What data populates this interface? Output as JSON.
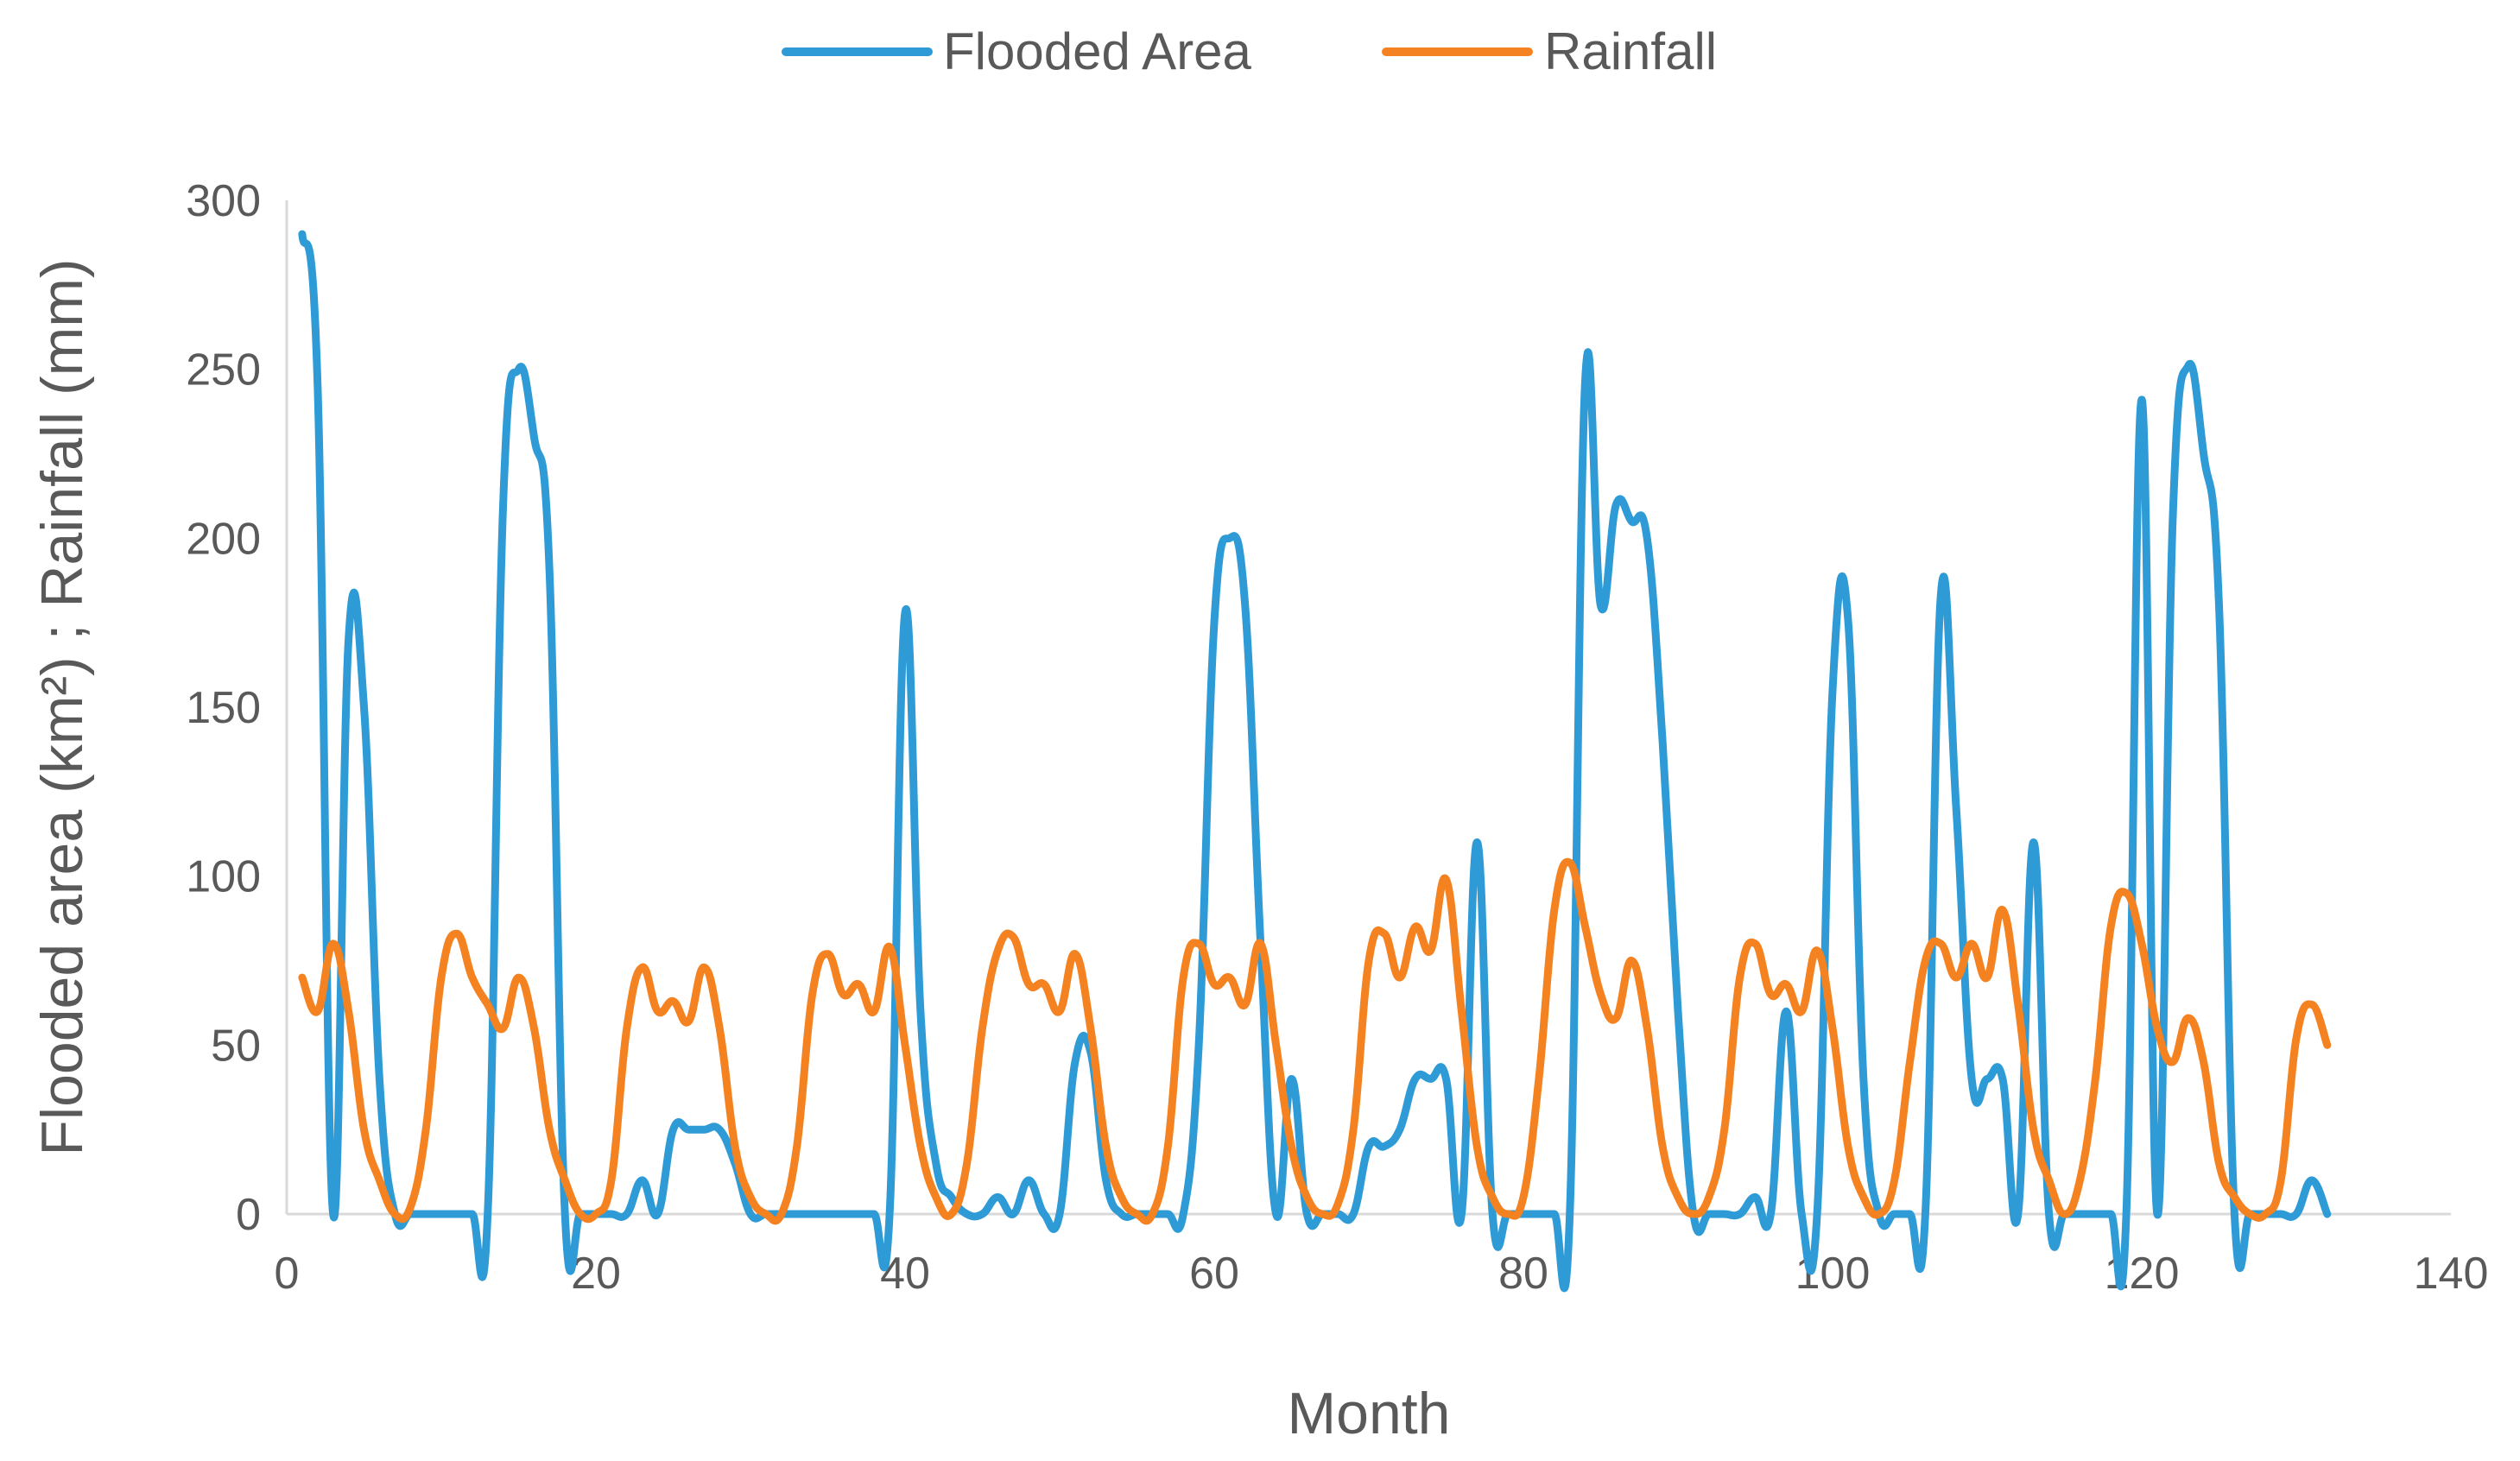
{
  "chart_data": {
    "type": "line",
    "title": "",
    "xlabel": "Month",
    "ylabel": "Flooded area (km²) ; Rainfall (mm)",
    "xlim": [
      0,
      140
    ],
    "ylim": [
      0,
      300
    ],
    "xticks": [
      0,
      20,
      40,
      60,
      80,
      100,
      120,
      140
    ],
    "yticks": [
      0,
      50,
      100,
      150,
      200,
      250,
      300
    ],
    "grid": false,
    "legend_position": "top-center",
    "series": [
      {
        "name": "Flooded Area",
        "color": "#2E9BD6",
        "points": [
          [
            1,
            290
          ],
          [
            2,
            245
          ],
          [
            3,
            0
          ],
          [
            4,
            170
          ],
          [
            5,
            150
          ],
          [
            6,
            40
          ],
          [
            7,
            0
          ],
          [
            8,
            0
          ],
          [
            9,
            0
          ],
          [
            10,
            0
          ],
          [
            11,
            0
          ],
          [
            12,
            0
          ],
          [
            13,
            0
          ],
          [
            14,
            210
          ],
          [
            15,
            250
          ],
          [
            16,
            230
          ],
          [
            17,
            190
          ],
          [
            18,
            0
          ],
          [
            19,
            0
          ],
          [
            20,
            0
          ],
          [
            21,
            0
          ],
          [
            22,
            0
          ],
          [
            23,
            10
          ],
          [
            24,
            0
          ],
          [
            25,
            25
          ],
          [
            26,
            25
          ],
          [
            27,
            25
          ],
          [
            28,
            25
          ],
          [
            29,
            15
          ],
          [
            30,
            0
          ],
          [
            31,
            0
          ],
          [
            32,
            0
          ],
          [
            33,
            0
          ],
          [
            34,
            0
          ],
          [
            35,
            0
          ],
          [
            36,
            0
          ],
          [
            37,
            0
          ],
          [
            38,
            0
          ],
          [
            39,
            0
          ],
          [
            40,
            178
          ],
          [
            41,
            60
          ],
          [
            42,
            15
          ],
          [
            43,
            5
          ],
          [
            44,
            0
          ],
          [
            45,
            0
          ],
          [
            46,
            5
          ],
          [
            47,
            0
          ],
          [
            48,
            10
          ],
          [
            49,
            0
          ],
          [
            50,
            0
          ],
          [
            51,
            45
          ],
          [
            52,
            48
          ],
          [
            53,
            10
          ],
          [
            54,
            0
          ],
          [
            55,
            0
          ],
          [
            56,
            0
          ],
          [
            57,
            0
          ],
          [
            58,
            0
          ],
          [
            59,
            50
          ],
          [
            60,
            175
          ],
          [
            61,
            200
          ],
          [
            62,
            180
          ],
          [
            63,
            80
          ],
          [
            64,
            0
          ],
          [
            65,
            40
          ],
          [
            66,
            0
          ],
          [
            67,
            0
          ],
          [
            68,
            0
          ],
          [
            69,
            0
          ],
          [
            70,
            20
          ],
          [
            71,
            20
          ],
          [
            72,
            25
          ],
          [
            73,
            40
          ],
          [
            74,
            40
          ],
          [
            75,
            40
          ],
          [
            76,
            0
          ],
          [
            77,
            110
          ],
          [
            78,
            0
          ],
          [
            79,
            0
          ],
          [
            80,
            0
          ],
          [
            81,
            0
          ],
          [
            82,
            0
          ],
          [
            83,
            0
          ],
          [
            84,
            247
          ],
          [
            85,
            180
          ],
          [
            86,
            210
          ],
          [
            87,
            205
          ],
          [
            88,
            200
          ],
          [
            89,
            140
          ],
          [
            90,
            60
          ],
          [
            91,
            0
          ],
          [
            92,
            0
          ],
          [
            93,
            0
          ],
          [
            94,
            0
          ],
          [
            95,
            5
          ],
          [
            96,
            0
          ],
          [
            97,
            60
          ],
          [
            98,
            0
          ],
          [
            99,
            0
          ],
          [
            100,
            155
          ],
          [
            101,
            176
          ],
          [
            102,
            40
          ],
          [
            103,
            0
          ],
          [
            104,
            0
          ],
          [
            105,
            0
          ],
          [
            106,
            0
          ],
          [
            107,
            183
          ],
          [
            108,
            120
          ],
          [
            109,
            40
          ],
          [
            110,
            40
          ],
          [
            111,
            40
          ],
          [
            112,
            0
          ],
          [
            113,
            110
          ],
          [
            114,
            0
          ],
          [
            115,
            0
          ],
          [
            116,
            0
          ],
          [
            117,
            0
          ],
          [
            118,
            0
          ],
          [
            119,
            0
          ],
          [
            120,
            241
          ],
          [
            121,
            0
          ],
          [
            122,
            205
          ],
          [
            123,
            251
          ],
          [
            124,
            225
          ],
          [
            125,
            180
          ],
          [
            126,
            0
          ],
          [
            127,
            0
          ],
          [
            128,
            0
          ],
          [
            129,
            0
          ],
          [
            130,
            0
          ],
          [
            131,
            10
          ],
          [
            132,
            0
          ]
        ]
      },
      {
        "name": "Rainfall",
        "color": "#F58220",
        "points": [
          [
            1,
            70
          ],
          [
            2,
            60
          ],
          [
            3,
            80
          ],
          [
            4,
            60
          ],
          [
            5,
            25
          ],
          [
            6,
            10
          ],
          [
            7,
            0
          ],
          [
            8,
            2
          ],
          [
            9,
            25
          ],
          [
            10,
            70
          ],
          [
            11,
            83
          ],
          [
            12,
            70
          ],
          [
            13,
            62
          ],
          [
            14,
            55
          ],
          [
            15,
            70
          ],
          [
            16,
            55
          ],
          [
            17,
            25
          ],
          [
            18,
            10
          ],
          [
            19,
            0
          ],
          [
            20,
            0
          ],
          [
            21,
            10
          ],
          [
            22,
            55
          ],
          [
            23,
            73
          ],
          [
            24,
            60
          ],
          [
            25,
            63
          ],
          [
            26,
            57
          ],
          [
            27,
            73
          ],
          [
            28,
            55
          ],
          [
            29,
            20
          ],
          [
            30,
            5
          ],
          [
            31,
            0
          ],
          [
            32,
            0
          ],
          [
            33,
            20
          ],
          [
            34,
            65
          ],
          [
            35,
            77
          ],
          [
            36,
            65
          ],
          [
            37,
            68
          ],
          [
            38,
            60
          ],
          [
            39,
            79
          ],
          [
            40,
            50
          ],
          [
            41,
            20
          ],
          [
            42,
            5
          ],
          [
            43,
            0
          ],
          [
            44,
            15
          ],
          [
            45,
            55
          ],
          [
            46,
            78
          ],
          [
            47,
            82
          ],
          [
            48,
            68
          ],
          [
            49,
            68
          ],
          [
            50,
            60
          ],
          [
            51,
            77
          ],
          [
            52,
            55
          ],
          [
            53,
            20
          ],
          [
            54,
            5
          ],
          [
            55,
            0
          ],
          [
            56,
            0
          ],
          [
            57,
            20
          ],
          [
            58,
            70
          ],
          [
            59,
            80
          ],
          [
            60,
            68
          ],
          [
            61,
            70
          ],
          [
            62,
            62
          ],
          [
            63,
            80
          ],
          [
            64,
            50
          ],
          [
            65,
            20
          ],
          [
            66,
            5
          ],
          [
            67,
            0
          ],
          [
            68,
            3
          ],
          [
            69,
            25
          ],
          [
            70,
            75
          ],
          [
            71,
            83
          ],
          [
            72,
            70
          ],
          [
            73,
            85
          ],
          [
            74,
            78
          ],
          [
            75,
            99
          ],
          [
            76,
            60
          ],
          [
            77,
            20
          ],
          [
            78,
            5
          ],
          [
            79,
            0
          ],
          [
            80,
            5
          ],
          [
            81,
            40
          ],
          [
            82,
            90
          ],
          [
            83,
            104
          ],
          [
            84,
            85
          ],
          [
            85,
            65
          ],
          [
            86,
            58
          ],
          [
            87,
            75
          ],
          [
            88,
            55
          ],
          [
            89,
            20
          ],
          [
            90,
            5
          ],
          [
            91,
            0
          ],
          [
            92,
            5
          ],
          [
            93,
            25
          ],
          [
            94,
            70
          ],
          [
            95,
            80
          ],
          [
            96,
            65
          ],
          [
            97,
            68
          ],
          [
            98,
            60
          ],
          [
            99,
            78
          ],
          [
            100,
            55
          ],
          [
            101,
            20
          ],
          [
            102,
            5
          ],
          [
            103,
            0
          ],
          [
            104,
            10
          ],
          [
            105,
            45
          ],
          [
            106,
            75
          ],
          [
            107,
            80
          ],
          [
            108,
            70
          ],
          [
            109,
            80
          ],
          [
            110,
            70
          ],
          [
            111,
            90
          ],
          [
            112,
            62
          ],
          [
            113,
            25
          ],
          [
            114,
            10
          ],
          [
            115,
            0
          ],
          [
            116,
            10
          ],
          [
            117,
            40
          ],
          [
            118,
            85
          ],
          [
            119,
            95
          ],
          [
            120,
            80
          ],
          [
            121,
            55
          ],
          [
            122,
            45
          ],
          [
            123,
            58
          ],
          [
            124,
            45
          ],
          [
            125,
            15
          ],
          [
            126,
            5
          ],
          [
            127,
            0
          ],
          [
            128,
            0
          ],
          [
            129,
            10
          ],
          [
            130,
            52
          ],
          [
            131,
            62
          ],
          [
            132,
            50
          ]
        ]
      }
    ]
  }
}
